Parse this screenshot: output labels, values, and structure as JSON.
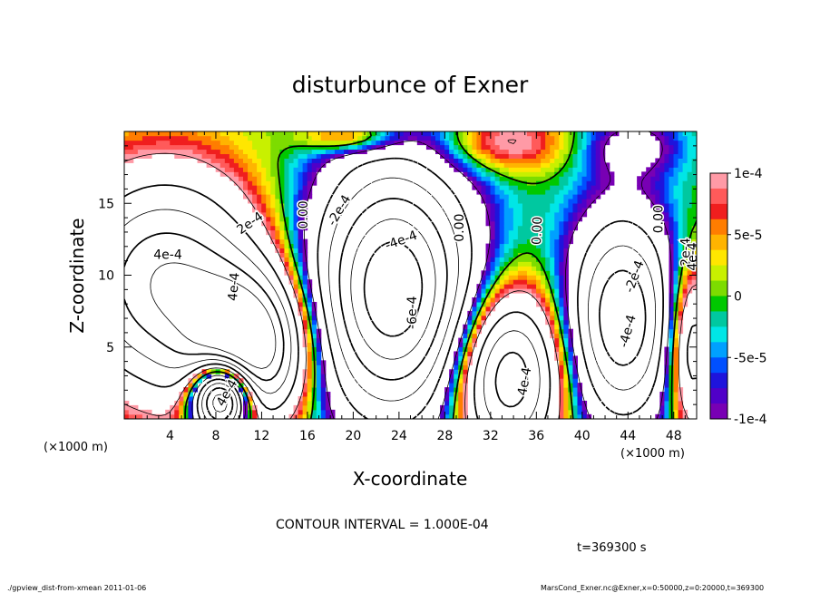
{
  "chart_data": {
    "type": "heatmap",
    "title": "disturbunce of Exner",
    "xlabel": "X-coordinate",
    "ylabel": "Z-coordinate",
    "x_unit_label": "(×1000 m)",
    "y_unit_label": "(×1000 m)",
    "xlim": [
      0,
      50
    ],
    "ylim": [
      0,
      20
    ],
    "x_ticks": [
      "4",
      "8",
      "12",
      "16",
      "20",
      "24",
      "28",
      "32",
      "36",
      "40",
      "44",
      "48"
    ],
    "y_ticks": [
      "5",
      "10",
      "15"
    ],
    "contour_interval_text": "CONTOUR INTERVAL = 1.000E-04",
    "time_text": "t=369300 s",
    "colorbar": {
      "range": [
        -0.0001,
        0.0001
      ],
      "tick_labels": [
        "1e-4",
        "5e-5",
        "0",
        "-5e-5",
        "-1e-4"
      ],
      "colors": [
        "#ff9aa6",
        "#ff5a5a",
        "#f01e1e",
        "#ff7d00",
        "#ffb400",
        "#ffe600",
        "#c8f000",
        "#7ddc00",
        "#00c800",
        "#00c8a0",
        "#00e6e6",
        "#00a0ff",
        "#0050ff",
        "#1e14dc",
        "#5000c8",
        "#7800b4"
      ]
    },
    "contour_labels": [
      "0.00",
      "0.00",
      "0.00",
      "0.00",
      "2e-4",
      "4e-4",
      "4e-4",
      "-2e-4",
      "-4e-4",
      "-6e-4",
      "-4e-4",
      "-2e-4",
      "4e-4",
      "2e-4",
      "4e-4",
      "4e-4"
    ],
    "zero_lines_x": [
      15.5,
      29.5,
      36.5,
      46.5
    ]
  },
  "footer": {
    "left": "./gpview_dist-from-xmean   2011-01-06",
    "right": "MarsCond_Exner.nc@Exner,x=0:50000,z=0:20000,t=369300"
  }
}
